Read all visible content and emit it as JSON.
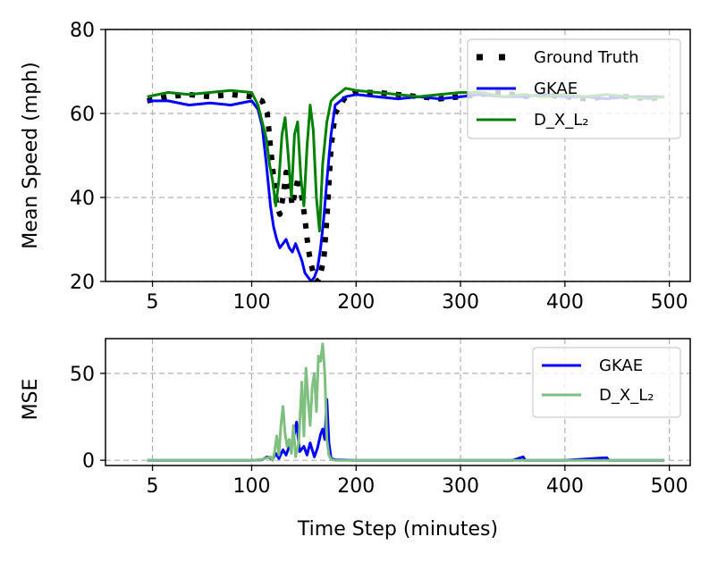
{
  "chart_data": [
    {
      "type": "line",
      "ylabel": "Mean Speed (mph)",
      "xlabel": "",
      "xlim": [
        -40,
        520
      ],
      "ylim": [
        20,
        80
      ],
      "x_ticks": [
        5,
        100,
        200,
        300,
        400,
        500
      ],
      "x_tick_labels": [
        "5",
        "100",
        "200",
        "300",
        "400",
        "500"
      ],
      "y_ticks": [
        20,
        40,
        60,
        80
      ],
      "y_tick_labels": [
        "20",
        "40",
        "60",
        "80"
      ],
      "grid": true,
      "legend_position": "top-right",
      "series": [
        {
          "name": "Ground Truth",
          "color": "#000000",
          "style": "dotted",
          "x": [
            0,
            20,
            40,
            60,
            80,
            100,
            110,
            115,
            118,
            121,
            124,
            127,
            130,
            133,
            136,
            139,
            142,
            145,
            148,
            151,
            154,
            157,
            160,
            163,
            166,
            169,
            172,
            176,
            180,
            190,
            200,
            220,
            240,
            260,
            280,
            300,
            320,
            340,
            360,
            380,
            400,
            420,
            440,
            460,
            480,
            495
          ],
          "values": [
            63,
            64,
            64.5,
            64,
            64.5,
            64,
            63,
            60,
            52,
            45,
            38,
            36,
            40,
            46,
            43,
            38,
            42,
            45,
            40,
            35,
            28,
            24,
            21,
            20,
            22,
            25,
            35,
            52,
            60,
            64,
            65,
            65,
            64.5,
            64,
            63.5,
            64,
            64.5,
            65,
            64,
            64.5,
            64,
            63.5,
            64,
            64,
            63.5,
            64
          ]
        },
        {
          "name": "GKAE",
          "color": "#0000ff",
          "style": "solid",
          "x": [
            0,
            20,
            40,
            60,
            80,
            100,
            106,
            110,
            114,
            118,
            121,
            124,
            127,
            130,
            133,
            136,
            139,
            142,
            145,
            148,
            151,
            154,
            157,
            160,
            163,
            166,
            169,
            172,
            176,
            180,
            190,
            200,
            220,
            240,
            260,
            280,
            300,
            320,
            340,
            360,
            380,
            400,
            420,
            440,
            460,
            480,
            495
          ],
          "values": [
            63,
            63,
            62,
            62.5,
            62,
            63,
            61,
            57,
            48,
            38,
            33,
            30,
            28,
            29,
            30,
            28,
            27,
            29,
            27,
            25,
            22,
            21,
            20,
            21,
            23,
            28,
            35,
            44,
            55,
            62,
            64,
            64.5,
            64,
            63.5,
            64,
            63.5,
            64,
            64.5,
            64,
            64,
            64.5,
            64,
            64,
            63.5,
            64,
            64,
            64
          ]
        },
        {
          "name": "D_X_L₂",
          "color": "#008000",
          "style": "solid",
          "x": [
            0,
            20,
            40,
            60,
            80,
            100,
            106,
            110,
            114,
            117,
            120,
            123,
            126,
            129,
            132,
            135,
            138,
            141,
            144,
            147,
            150,
            153,
            156,
            159,
            162,
            165,
            168,
            172,
            176,
            180,
            190,
            200,
            220,
            240,
            260,
            280,
            300,
            320,
            340,
            360,
            380,
            400,
            420,
            440,
            460,
            480,
            495
          ],
          "values": [
            64,
            65,
            64.5,
            65,
            65.5,
            65,
            62,
            58,
            54,
            48,
            44,
            38,
            44,
            55,
            59,
            50,
            40,
            55,
            58,
            45,
            38,
            52,
            62,
            56,
            40,
            32,
            48,
            58,
            63,
            64,
            66,
            65.5,
            65,
            64.5,
            64,
            64.5,
            65,
            65,
            64,
            64.5,
            64,
            64.5,
            64,
            64.5,
            64,
            63.5,
            64
          ]
        }
      ]
    },
    {
      "type": "line",
      "ylabel": "MSE",
      "xlabel": "Time Step (minutes)",
      "xlim": [
        -40,
        520
      ],
      "ylim": [
        -3,
        70
      ],
      "x_ticks": [
        5,
        100,
        200,
        300,
        400,
        500
      ],
      "x_tick_labels": [
        "5",
        "100",
        "200",
        "300",
        "400",
        "500"
      ],
      "y_ticks": [
        0,
        50
      ],
      "y_tick_labels": [
        "0",
        "50"
      ],
      "grid": true,
      "legend_position": "top-right",
      "series": [
        {
          "name": "GKAE",
          "color": "#0000ff",
          "style": "solid",
          "x": [
            0,
            50,
            100,
            110,
            115,
            120,
            123,
            126,
            130,
            133,
            136,
            140,
            143,
            146,
            150,
            153,
            156,
            160,
            163,
            166,
            168,
            170,
            172,
            174,
            176,
            180,
            200,
            250,
            300,
            350,
            360,
            362,
            365,
            400,
            440,
            442,
            445,
            495
          ],
          "values": [
            0,
            0,
            0,
            0.3,
            2,
            0.5,
            4,
            1,
            6,
            3,
            8,
            12,
            22,
            5,
            8,
            3,
            10,
            2,
            7,
            15,
            18,
            12,
            35,
            10,
            1,
            0.3,
            0,
            0,
            0,
            0,
            2,
            0,
            0,
            0,
            1.5,
            0,
            0,
            0
          ]
        },
        {
          "name": "D_X_L₂",
          "color": "#7fbf7f",
          "style": "solid",
          "x": [
            0,
            100,
            110,
            118,
            120,
            122,
            124,
            126,
            128,
            130,
            132,
            134,
            136,
            138,
            140,
            142,
            145,
            148,
            150,
            152,
            154,
            156,
            158,
            160,
            162,
            164,
            166,
            168,
            170,
            172,
            174,
            176,
            180,
            200,
            495
          ],
          "values": [
            0,
            0,
            0.5,
            2,
            0,
            5,
            14,
            3,
            20,
            31,
            15,
            8,
            12,
            4,
            20,
            2,
            10,
            45,
            14,
            53,
            35,
            20,
            42,
            50,
            28,
            60,
            57,
            67,
            50,
            12,
            3,
            0.5,
            0,
            0,
            0
          ]
        }
      ]
    }
  ]
}
